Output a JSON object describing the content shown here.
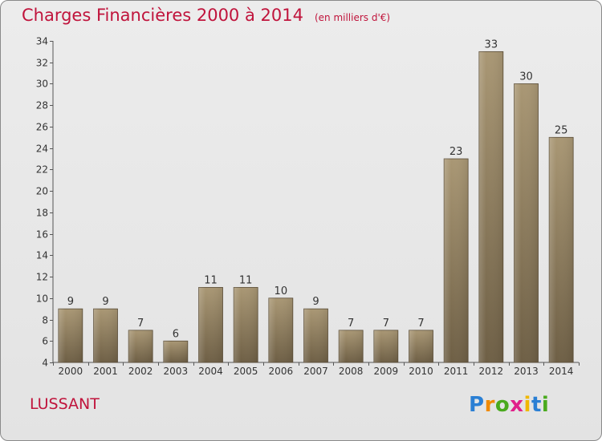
{
  "header": {
    "title": "Charges Financières 2000 à 2014",
    "unit": "(en milliers d'€)"
  },
  "footer": {
    "place": "LUSSANT",
    "logo_letters": [
      "P",
      "r",
      "o",
      "x",
      "i",
      "t",
      "i"
    ],
    "logo_colors": [
      "#2a7fd4",
      "#f08a00",
      "#4aaa1e",
      "#e0208a",
      "#f0b800",
      "#2a7fd4",
      "#4aaa1e"
    ]
  },
  "chart_data": {
    "type": "bar",
    "title": "Charges Financières 2000 à 2014",
    "subtitle": "(en milliers d'€)",
    "categories": [
      "2000",
      "2001",
      "2002",
      "2003",
      "2004",
      "2005",
      "2006",
      "2007",
      "2008",
      "2009",
      "2010",
      "2011",
      "2012",
      "2013",
      "2014"
    ],
    "values": [
      9,
      9,
      7,
      6,
      11,
      11,
      10,
      9,
      7,
      7,
      7,
      23,
      33,
      30,
      25
    ],
    "ylim": [
      4,
      34
    ],
    "yticks": [
      4,
      6,
      8,
      10,
      12,
      14,
      16,
      18,
      20,
      22,
      24,
      26,
      28,
      30,
      32,
      34
    ],
    "bar_color": "#8c7a5c",
    "grid": false,
    "data_labels": true
  }
}
